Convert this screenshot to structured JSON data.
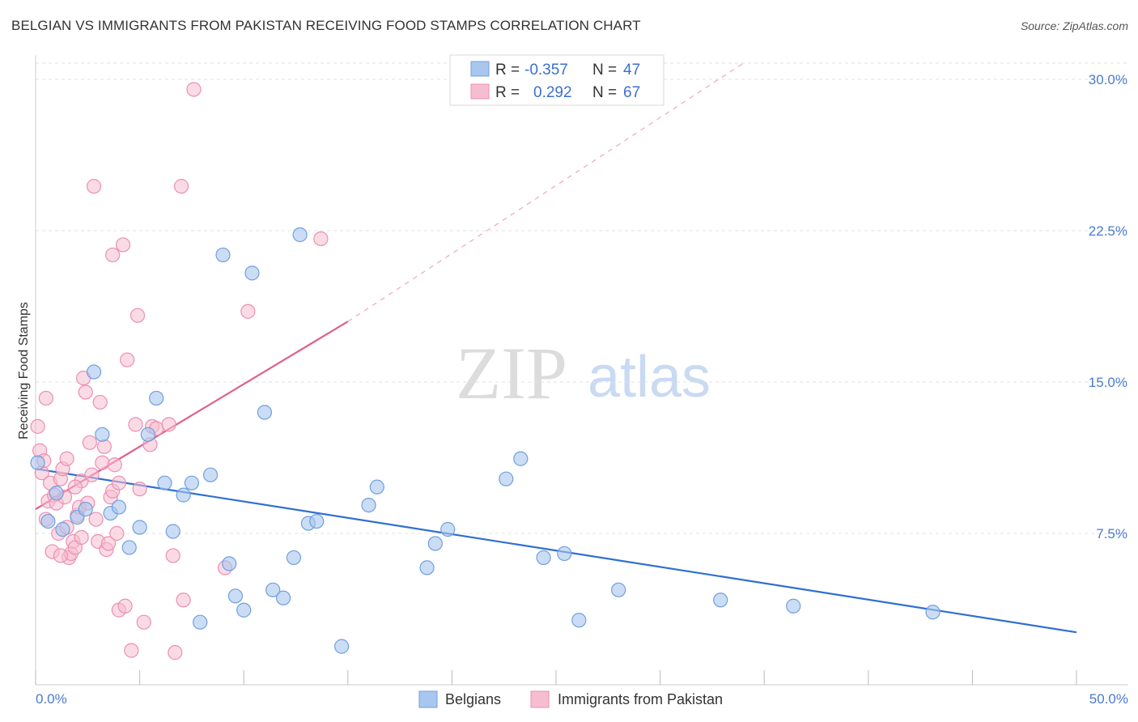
{
  "header": {
    "title": "BELGIAN VS IMMIGRANTS FROM PAKISTAN RECEIVING FOOD STAMPS CORRELATION CHART",
    "source": "Source: ZipAtlas.com"
  },
  "watermark": {
    "zip": "ZIP",
    "atlas": "atlas"
  },
  "colors": {
    "belgians_fill": "#a9c6ee",
    "belgians_stroke": "#6f9fe0",
    "belgians_line": "#2f6fd0",
    "pakistan_fill": "#f6bdd0",
    "pakistan_stroke": "#ec8fb0",
    "pakistan_line": "#e0608d",
    "tick_label": "#4a7bd0",
    "grid": "#e2e2e2"
  },
  "legend_top": {
    "rows": [
      {
        "r_label": "R =",
        "r_value": "-0.357",
        "n_label": "N =",
        "n_value": "47"
      },
      {
        "r_label": "R =",
        "r_value": "0.292",
        "n_label": "N =",
        "n_value": "67"
      }
    ]
  },
  "legend_bottom": {
    "items": [
      {
        "label": "Belgians"
      },
      {
        "label": "Immigrants from Pakistan"
      }
    ]
  },
  "chart_data": {
    "type": "scatter",
    "title": "BELGIAN VS IMMIGRANTS FROM PAKISTAN RECEIVING FOOD STAMPS CORRELATION CHART",
    "xlabel": "",
    "ylabel": "Receiving Food Stamps",
    "xlim": [
      0,
      50
    ],
    "ylim": [
      0,
      31
    ],
    "x_tick_labels": [
      "0.0%",
      "50.0%"
    ],
    "y_ticks": [
      7.5,
      15.0,
      22.5,
      30.0
    ],
    "y_tick_labels": [
      "7.5%",
      "15.0%",
      "22.5%",
      "30.0%"
    ],
    "grid": true,
    "legend_position": "top-center",
    "series": [
      {
        "name": "Belgians",
        "R": -0.357,
        "N": 47,
        "trend": {
          "x": [
            0,
            50
          ],
          "y": [
            10.7,
            2.6
          ],
          "style": "solid"
        },
        "points": [
          [
            0.1,
            11.0
          ],
          [
            0.6,
            8.1
          ],
          [
            1.0,
            9.5
          ],
          [
            1.3,
            7.7
          ],
          [
            2.0,
            8.3
          ],
          [
            2.4,
            8.7
          ],
          [
            2.8,
            15.5
          ],
          [
            3.2,
            12.4
          ],
          [
            3.6,
            8.5
          ],
          [
            4.0,
            8.8
          ],
          [
            4.5,
            6.8
          ],
          [
            5.0,
            7.8
          ],
          [
            5.4,
            12.4
          ],
          [
            5.8,
            14.2
          ],
          [
            6.2,
            10.0
          ],
          [
            6.6,
            7.6
          ],
          [
            7.1,
            9.4
          ],
          [
            7.5,
            10.0
          ],
          [
            7.9,
            3.1
          ],
          [
            8.4,
            10.4
          ],
          [
            9.0,
            21.3
          ],
          [
            9.3,
            6.0
          ],
          [
            9.6,
            4.4
          ],
          [
            10.0,
            3.7
          ],
          [
            10.4,
            20.4
          ],
          [
            11.0,
            13.5
          ],
          [
            11.4,
            4.7
          ],
          [
            11.9,
            4.3
          ],
          [
            12.4,
            6.3
          ],
          [
            12.7,
            22.3
          ],
          [
            13.1,
            8.0
          ],
          [
            13.5,
            8.1
          ],
          [
            14.7,
            1.9
          ],
          [
            16.0,
            8.9
          ],
          [
            16.4,
            9.8
          ],
          [
            18.8,
            5.8
          ],
          [
            19.2,
            7.0
          ],
          [
            19.8,
            7.7
          ],
          [
            22.6,
            10.2
          ],
          [
            23.3,
            11.2
          ],
          [
            24.4,
            6.3
          ],
          [
            25.4,
            6.5
          ],
          [
            26.1,
            3.2
          ],
          [
            28.0,
            4.7
          ],
          [
            32.9,
            4.2
          ],
          [
            36.4,
            3.9
          ],
          [
            43.1,
            3.6
          ]
        ]
      },
      {
        "name": "Immigrants from Pakistan",
        "R": 0.292,
        "N": 67,
        "trend": {
          "x": [
            0,
            15
          ],
          "y": [
            8.7,
            18.0
          ],
          "style": "solid",
          "extended": {
            "x": [
              15,
              34
            ],
            "y": [
              18.0,
              30.8
            ],
            "style": "dashed"
          }
        },
        "points": [
          [
            0.1,
            12.8
          ],
          [
            0.2,
            11.6
          ],
          [
            0.3,
            10.5
          ],
          [
            0.5,
            8.2
          ],
          [
            0.5,
            14.2
          ],
          [
            0.6,
            9.1
          ],
          [
            0.7,
            10.0
          ],
          [
            0.8,
            6.6
          ],
          [
            0.9,
            9.4
          ],
          [
            1.0,
            9.0
          ],
          [
            1.1,
            7.5
          ],
          [
            1.2,
            10.2
          ],
          [
            1.3,
            10.7
          ],
          [
            1.4,
            9.3
          ],
          [
            1.5,
            7.8
          ],
          [
            1.5,
            11.2
          ],
          [
            1.6,
            6.3
          ],
          [
            1.7,
            6.5
          ],
          [
            1.8,
            7.1
          ],
          [
            1.9,
            6.8
          ],
          [
            2.0,
            8.4
          ],
          [
            2.1,
            8.8
          ],
          [
            2.2,
            10.1
          ],
          [
            2.3,
            15.2
          ],
          [
            2.4,
            14.5
          ],
          [
            2.5,
            9.0
          ],
          [
            2.6,
            12.0
          ],
          [
            2.7,
            10.4
          ],
          [
            2.8,
            24.7
          ],
          [
            2.9,
            8.2
          ],
          [
            3.0,
            7.1
          ],
          [
            3.1,
            14.0
          ],
          [
            3.2,
            11.0
          ],
          [
            3.3,
            11.8
          ],
          [
            3.4,
            6.7
          ],
          [
            3.5,
            7.0
          ],
          [
            3.6,
            9.3
          ],
          [
            3.7,
            9.6
          ],
          [
            3.7,
            21.3
          ],
          [
            3.8,
            10.9
          ],
          [
            3.9,
            7.5
          ],
          [
            4.0,
            10.0
          ],
          [
            4.0,
            3.7
          ],
          [
            4.2,
            21.8
          ],
          [
            4.3,
            3.9
          ],
          [
            4.4,
            16.1
          ],
          [
            4.6,
            1.7
          ],
          [
            4.8,
            12.9
          ],
          [
            4.9,
            18.3
          ],
          [
            5.0,
            9.7
          ],
          [
            5.2,
            3.1
          ],
          [
            5.5,
            11.9
          ],
          [
            5.6,
            12.8
          ],
          [
            5.8,
            12.7
          ],
          [
            6.4,
            12.9
          ],
          [
            6.6,
            6.4
          ],
          [
            6.7,
            1.6
          ],
          [
            7.0,
            24.7
          ],
          [
            7.1,
            4.2
          ],
          [
            7.6,
            29.5
          ],
          [
            9.1,
            5.8
          ],
          [
            10.2,
            18.5
          ],
          [
            13.7,
            22.1
          ],
          [
            1.2,
            6.4
          ],
          [
            2.2,
            7.3
          ],
          [
            0.4,
            11.1
          ],
          [
            1.9,
            9.8
          ]
        ]
      }
    ]
  }
}
